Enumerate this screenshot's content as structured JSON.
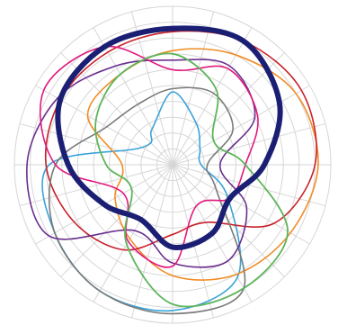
{
  "chart_data": {
    "type": "line",
    "subtype": "polar",
    "title": "",
    "angular_axis": {
      "unit": "degrees",
      "range": [
        0,
        360
      ],
      "direction": "clockwise",
      "zero_at": "top",
      "tick_step": 15,
      "tick_labels_shown": false
    },
    "radial_axis": {
      "range": [
        0,
        1
      ],
      "ring_count": 10,
      "tick_labels_shown": false
    },
    "grid": true,
    "legend": "none",
    "theta": [
      0,
      30,
      60,
      90,
      120,
      150,
      180,
      210,
      240,
      270,
      300,
      330
    ],
    "series": [
      {
        "color": "#1b1f73",
        "stroke": 6,
        "r": [
          0.86,
          0.9,
          0.78,
          0.58,
          0.42,
          0.5,
          0.52,
          0.4,
          0.5,
          0.66,
          0.82,
          0.86
        ]
      },
      {
        "color": "#3aa3d9",
        "stroke": 1.6,
        "r": [
          0.46,
          0.3,
          0.2,
          0.18,
          0.4,
          0.82,
          0.92,
          0.92,
          0.86,
          0.78,
          0.22,
          0.26
        ]
      },
      {
        "color": "#5cb55a",
        "stroke": 1.8,
        "r": [
          0.7,
          0.55,
          0.3,
          0.46,
          0.84,
          0.9,
          0.88,
          0.58,
          0.3,
          0.42,
          0.56,
          0.66
        ]
      },
      {
        "color": "#f08c24",
        "stroke": 1.6,
        "r": [
          0.72,
          0.8,
          0.9,
          0.92,
          0.86,
          0.8,
          0.7,
          0.54,
          0.42,
          0.32,
          0.62,
          0.66
        ]
      },
      {
        "color": "#c8212a",
        "stroke": 1.6,
        "r": [
          0.84,
          0.9,
          0.94,
          0.9,
          0.74,
          0.42,
          0.44,
          0.62,
          0.72,
          0.8,
          0.82,
          0.82
        ]
      },
      {
        "color": "#7a7a7a",
        "stroke": 1.6,
        "r": [
          0.48,
          0.52,
          0.44,
          0.22,
          0.32,
          0.9,
          0.94,
          0.92,
          0.86,
          0.74,
          0.48,
          0.44
        ]
      },
      {
        "color": "#6a2f8e",
        "stroke": 1.6,
        "r": [
          0.66,
          0.72,
          0.6,
          0.3,
          0.54,
          0.7,
          0.62,
          0.48,
          0.9,
          0.92,
          0.84,
          0.72
        ]
      },
      {
        "color": "#e0197e",
        "stroke": 1.6,
        "r": [
          0.6,
          0.7,
          0.62,
          0.46,
          0.42,
          0.3,
          0.64,
          0.56,
          0.36,
          0.74,
          0.94,
          0.86
        ]
      }
    ]
  }
}
